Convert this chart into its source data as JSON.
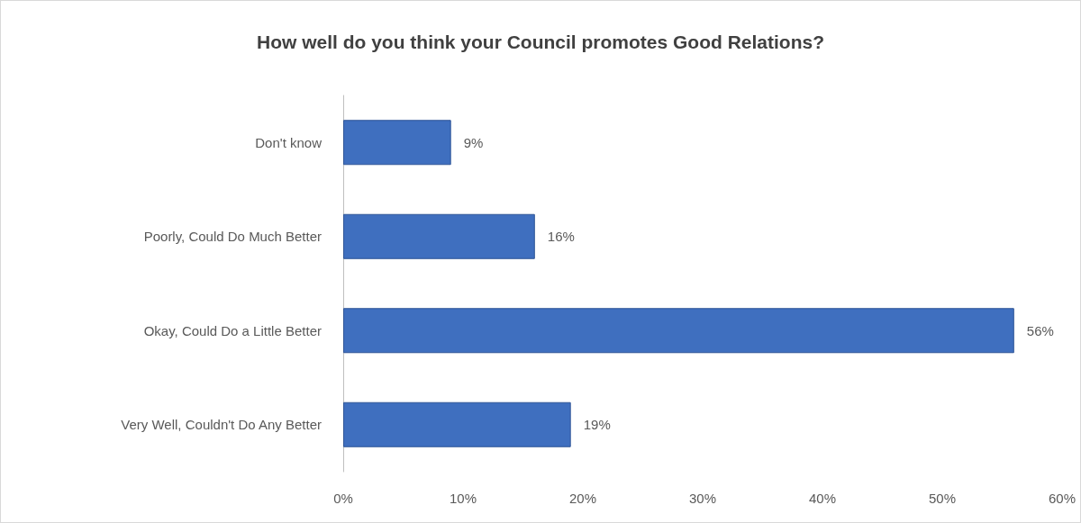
{
  "chart_data": {
    "type": "bar",
    "orientation": "horizontal",
    "title": "How well do you think your Council promotes Good Relations?",
    "categories": [
      "Don't know",
      "Poorly, Could Do Much Better",
      "Okay, Could Do a Little Better",
      "Very Well, Couldn't Do Any Better"
    ],
    "values": [
      9,
      16,
      56,
      19
    ],
    "value_labels": [
      "9%",
      "16%",
      "56%",
      "19%"
    ],
    "color": "#3f6fbf",
    "xlim": [
      0,
      60
    ],
    "xticks": [
      {
        "value": 0,
        "label": "0%"
      },
      {
        "value": 10,
        "label": "10%"
      },
      {
        "value": 20,
        "label": "20%"
      },
      {
        "value": 30,
        "label": "30%"
      },
      {
        "value": 40,
        "label": "40%"
      },
      {
        "value": 50,
        "label": "50%"
      },
      {
        "value": 60,
        "label": "60%"
      }
    ],
    "grid": false
  }
}
